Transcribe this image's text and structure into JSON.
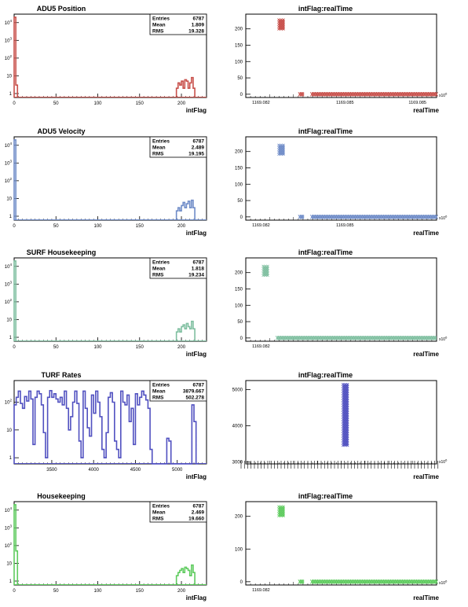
{
  "chart_data": [
    {
      "id": "p1",
      "type": "bar",
      "title": "ADU5 Position",
      "xlabel": "intFlag",
      "ylabel": "",
      "log_y": true,
      "xlim": [
        0,
        230
      ],
      "ylim": [
        0.6,
        30000
      ],
      "xticks": [
        "0",
        "50",
        "100",
        "150",
        "200"
      ],
      "yticks": [
        "1",
        "10",
        "10^2",
        "10^3",
        "10^4"
      ],
      "color": "#c8504b",
      "stats": {
        "entries_label": "Entries",
        "entries": "6787",
        "mean_label": "Mean",
        "mean": "1.809",
        "rms_label": "RMS",
        "rms": "19.328"
      },
      "bins": [
        {
          "x": 0,
          "y": 20000
        },
        {
          "x": 2,
          "y": 3
        },
        {
          "x": 194,
          "y": 2
        },
        {
          "x": 196,
          "y": 4
        },
        {
          "x": 198,
          "y": 3
        },
        {
          "x": 200,
          "y": 5
        },
        {
          "x": 202,
          "y": 2
        },
        {
          "x": 204,
          "y": 6
        },
        {
          "x": 206,
          "y": 5
        },
        {
          "x": 208,
          "y": 2
        },
        {
          "x": 210,
          "y": 4
        },
        {
          "x": 212,
          "y": 8
        },
        {
          "x": 214,
          "y": 2
        }
      ]
    },
    {
      "id": "s1",
      "type": "scatter",
      "title": "intFlag:realTime",
      "xlabel": "realTime",
      "x_unit_label": "x10^6",
      "xlim": [
        1169.0815,
        1169.087
      ],
      "ylim": [
        -10,
        245
      ],
      "xticks": [
        "1169.082",
        "1169.085",
        "1169.085"
      ],
      "yticks": [
        "0",
        "50",
        "100",
        "150",
        "200"
      ],
      "color": "#c8504b",
      "clusters": [
        {
          "x0": 1169.08245,
          "x1": 1169.08262,
          "y0": 198,
          "y1": 228
        },
        {
          "x0": 1169.08305,
          "x1": 1169.08318,
          "y0": 0,
          "y1": 1
        },
        {
          "x0": 1169.0834,
          "x1": 1169.087,
          "y0": 0,
          "y1": 1
        }
      ]
    },
    {
      "id": "p2",
      "type": "bar",
      "title": "ADU5 Velocity",
      "xlabel": "intFlag",
      "ylabel": "",
      "log_y": true,
      "xlim": [
        0,
        230
      ],
      "ylim": [
        0.6,
        30000
      ],
      "xticks": [
        "0",
        "50",
        "100",
        "150",
        "200"
      ],
      "yticks": [
        "1",
        "10",
        "10^2",
        "10^3",
        "10^4"
      ],
      "color": "#6f8cc8",
      "stats": {
        "entries_label": "Entries",
        "entries": "6787",
        "mean_label": "Mean",
        "mean": "2.489",
        "rms_label": "RMS",
        "rms": "19.195"
      },
      "bins": [
        {
          "x": 0,
          "y": 20000
        },
        {
          "x": 194,
          "y": 2
        },
        {
          "x": 196,
          "y": 3
        },
        {
          "x": 198,
          "y": 2
        },
        {
          "x": 200,
          "y": 4
        },
        {
          "x": 202,
          "y": 6
        },
        {
          "x": 204,
          "y": 3
        },
        {
          "x": 206,
          "y": 5
        },
        {
          "x": 208,
          "y": 7
        },
        {
          "x": 210,
          "y": 3
        },
        {
          "x": 212,
          "y": 8
        },
        {
          "x": 214,
          "y": 3
        }
      ]
    },
    {
      "id": "s2",
      "type": "scatter",
      "title": "intFlag:realTime",
      "xlabel": "realTime",
      "x_unit_label": "x10^6",
      "xlim": [
        1169.0815,
        1169.087
      ],
      "ylim": [
        -10,
        245
      ],
      "xticks": [
        "1169.082",
        "1169.085"
      ],
      "yticks": [
        "0",
        "50",
        "100",
        "150",
        "200"
      ],
      "color": "#6f8cc8",
      "clusters": [
        {
          "x0": 1169.08245,
          "x1": 1169.08262,
          "y0": 190,
          "y1": 220
        },
        {
          "x0": 1169.08305,
          "x1": 1169.08318,
          "y0": 0,
          "y1": 1
        },
        {
          "x0": 1169.0834,
          "x1": 1169.087,
          "y0": 0,
          "y1": 1
        }
      ]
    },
    {
      "id": "p3",
      "type": "bar",
      "title": "SURF Housekeeping",
      "xlabel": "intFlag",
      "ylabel": "",
      "log_y": true,
      "xlim": [
        0,
        230
      ],
      "ylim": [
        0.6,
        30000
      ],
      "xticks": [
        "0",
        "50",
        "100",
        "150",
        "200"
      ],
      "yticks": [
        "1",
        "10",
        "10^2",
        "10^3",
        "10^4"
      ],
      "color": "#7fbfa0",
      "stats": {
        "entries_label": "Entries",
        "entries": "6787",
        "mean_label": "Mean",
        "mean": "1.818",
        "rms_label": "RMS",
        "rms": "19.234"
      },
      "bins": [
        {
          "x": 0,
          "y": 20000
        },
        {
          "x": 194,
          "y": 2
        },
        {
          "x": 196,
          "y": 3
        },
        {
          "x": 198,
          "y": 2
        },
        {
          "x": 200,
          "y": 4
        },
        {
          "x": 202,
          "y": 5
        },
        {
          "x": 204,
          "y": 3
        },
        {
          "x": 206,
          "y": 6
        },
        {
          "x": 208,
          "y": 4
        },
        {
          "x": 210,
          "y": 3
        },
        {
          "x": 212,
          "y": 8
        },
        {
          "x": 214,
          "y": 3
        }
      ]
    },
    {
      "id": "s3",
      "type": "scatter",
      "title": "intFlag:realTime",
      "xlabel": "realTime",
      "x_unit_label": "x10^6",
      "xlim": [
        1169.0815,
        1169.087
      ],
      "ylim": [
        -10,
        245
      ],
      "xticks": [
        "1169.082"
      ],
      "yticks": [
        "0",
        "50",
        "100",
        "150",
        "200"
      ],
      "color": "#7fbfa0",
      "clusters": [
        {
          "x0": 1169.082,
          "x1": 1169.08215,
          "y0": 190,
          "y1": 220
        },
        {
          "x0": 1169.0824,
          "x1": 1169.087,
          "y0": 0,
          "y1": 1
        }
      ]
    },
    {
      "id": "p4",
      "type": "bar",
      "title": "TURF Rates",
      "xlabel": "intFlag",
      "ylabel": "",
      "log_y": true,
      "xlim": [
        3050,
        5350
      ],
      "ylim": [
        0.6,
        600
      ],
      "xticks": [
        "3500",
        "4000",
        "4500",
        "5000"
      ],
      "yticks": [
        "1",
        "10",
        "10^2"
      ],
      "color": "#5050c0",
      "stats": {
        "entries_label": "Entries",
        "entries": "6787",
        "mean_label": "Mean",
        "mean": "3879.667",
        "rms_label": "RMS",
        "rms": "502.278"
      },
      "bins": [
        {
          "x": 3050,
          "y": 80
        },
        {
          "x": 3075,
          "y": 150
        },
        {
          "x": 3100,
          "y": 250
        },
        {
          "x": 3125,
          "y": 90
        },
        {
          "x": 3150,
          "y": 60
        },
        {
          "x": 3175,
          "y": 160
        },
        {
          "x": 3200,
          "y": 110
        },
        {
          "x": 3225,
          "y": 250
        },
        {
          "x": 3250,
          "y": 130
        },
        {
          "x": 3275,
          "y": 3
        },
        {
          "x": 3300,
          "y": 150
        },
        {
          "x": 3325,
          "y": 250
        },
        {
          "x": 3350,
          "y": 200
        },
        {
          "x": 3375,
          "y": 80
        },
        {
          "x": 3400,
          "y": 8
        },
        {
          "x": 3425,
          "y": 1
        },
        {
          "x": 3450,
          "y": 150
        },
        {
          "x": 3475,
          "y": 260
        },
        {
          "x": 3500,
          "y": 150
        },
        {
          "x": 3525,
          "y": 200
        },
        {
          "x": 3550,
          "y": 130
        },
        {
          "x": 3575,
          "y": 100
        },
        {
          "x": 3600,
          "y": 150
        },
        {
          "x": 3625,
          "y": 80
        },
        {
          "x": 3650,
          "y": 250
        },
        {
          "x": 3675,
          "y": 60
        },
        {
          "x": 3700,
          "y": 10
        },
        {
          "x": 3725,
          "y": 30
        },
        {
          "x": 3750,
          "y": 100
        },
        {
          "x": 3775,
          "y": 250
        },
        {
          "x": 3800,
          "y": 90
        },
        {
          "x": 3825,
          "y": 4
        },
        {
          "x": 3850,
          "y": 1
        },
        {
          "x": 3875,
          "y": 250
        },
        {
          "x": 3900,
          "y": 60
        },
        {
          "x": 3925,
          "y": 12
        },
        {
          "x": 3950,
          "y": 6
        },
        {
          "x": 3975,
          "y": 180
        },
        {
          "x": 4000,
          "y": 40
        },
        {
          "x": 4025,
          "y": 250
        },
        {
          "x": 4050,
          "y": 100
        },
        {
          "x": 4075,
          "y": 30
        },
        {
          "x": 4100,
          "y": 2
        },
        {
          "x": 4125,
          "y": 1
        },
        {
          "x": 4150,
          "y": 8
        },
        {
          "x": 4175,
          "y": 150
        },
        {
          "x": 4200,
          "y": 220
        },
        {
          "x": 4225,
          "y": 100
        },
        {
          "x": 4250,
          "y": 4
        },
        {
          "x": 4275,
          "y": 2
        },
        {
          "x": 4300,
          "y": 1
        },
        {
          "x": 4325,
          "y": 250
        },
        {
          "x": 4350,
          "y": 100
        },
        {
          "x": 4375,
          "y": 80
        },
        {
          "x": 4400,
          "y": 180
        },
        {
          "x": 4425,
          "y": 20
        },
        {
          "x": 4450,
          "y": 60
        },
        {
          "x": 4475,
          "y": 3
        },
        {
          "x": 4500,
          "y": 200
        },
        {
          "x": 4525,
          "y": 80
        },
        {
          "x": 4550,
          "y": 150
        },
        {
          "x": 4575,
          "y": 250
        },
        {
          "x": 4600,
          "y": 180
        },
        {
          "x": 4625,
          "y": 120
        },
        {
          "x": 4650,
          "y": 60
        },
        {
          "x": 4675,
          "y": 2
        },
        {
          "x": 4700,
          "y": 0.5
        },
        {
          "x": 4725,
          "y": 0.5
        },
        {
          "x": 4750,
          "y": 0.5
        },
        {
          "x": 4775,
          "y": 0.5
        },
        {
          "x": 4800,
          "y": 0.5
        },
        {
          "x": 4825,
          "y": 0.5
        },
        {
          "x": 4850,
          "y": 0.5
        },
        {
          "x": 4875,
          "y": 5
        },
        {
          "x": 4900,
          "y": 4
        },
        {
          "x": 4925,
          "y": 0.5
        },
        {
          "x": 4950,
          "y": 0.5
        },
        {
          "x": 4975,
          "y": 0.5
        },
        {
          "x": 5000,
          "y": 0.5
        },
        {
          "x": 5025,
          "y": 0.5
        },
        {
          "x": 5050,
          "y": 0.5
        },
        {
          "x": 5075,
          "y": 0.5
        },
        {
          "x": 5100,
          "y": 0.5
        },
        {
          "x": 5125,
          "y": 0.5
        },
        {
          "x": 5150,
          "y": 0.5
        },
        {
          "x": 5175,
          "y": 80
        },
        {
          "x": 5200,
          "y": 20
        },
        {
          "x": 5225,
          "y": 0.5
        }
      ]
    },
    {
      "id": "s4",
      "type": "scatter",
      "title": "intFlag:realTime",
      "xlabel": "realTime",
      "x_unit_label": "x10^6",
      "xlim": [
        1169.0815,
        1169.087
      ],
      "ylim": [
        2950,
        5250
      ],
      "xticks": [],
      "yticks": [
        "3000",
        "4000",
        "5000"
      ],
      "color": "#5050c0",
      "clusters": [
        {
          "x0": 1169.0843,
          "x1": 1169.08445,
          "y0": 3450,
          "y1": 5150
        }
      ]
    },
    {
      "id": "p5",
      "type": "bar",
      "title": "Housekeeping",
      "xlabel": "intFlag",
      "ylabel": "",
      "log_y": true,
      "xlim": [
        0,
        230
      ],
      "ylim": [
        0.6,
        30000
      ],
      "xticks": [
        "0",
        "50",
        "100",
        "150",
        "200"
      ],
      "yticks": [
        "1",
        "10",
        "10^2",
        "10^3",
        "10^4"
      ],
      "color": "#5ecb5e",
      "stats": {
        "entries_label": "Entries",
        "entries": "6787",
        "mean_label": "Mean",
        "mean": "2.469",
        "rms_label": "RMS",
        "rms": "19.660"
      },
      "bins": [
        {
          "x": 0,
          "y": 20000
        },
        {
          "x": 2,
          "y": 50
        },
        {
          "x": 194,
          "y": 2
        },
        {
          "x": 196,
          "y": 3
        },
        {
          "x": 198,
          "y": 4
        },
        {
          "x": 200,
          "y": 5
        },
        {
          "x": 202,
          "y": 3
        },
        {
          "x": 204,
          "y": 6
        },
        {
          "x": 206,
          "y": 5
        },
        {
          "x": 208,
          "y": 4
        },
        {
          "x": 210,
          "y": 2
        },
        {
          "x": 212,
          "y": 8
        },
        {
          "x": 214,
          "y": 3
        }
      ]
    },
    {
      "id": "s5",
      "type": "scatter",
      "title": "intFlag:realTime",
      "xlabel": "realTime",
      "x_unit_label": "x10^6",
      "xlim": [
        1169.0815,
        1169.087
      ],
      "ylim": [
        -10,
        245
      ],
      "xticks": [
        "1169.082"
      ],
      "yticks": [
        "0",
        "100",
        "200"
      ],
      "color": "#5ecb5e",
      "clusters": [
        {
          "x0": 1169.08245,
          "x1": 1169.08262,
          "y0": 200,
          "y1": 230
        },
        {
          "x0": 1169.08305,
          "x1": 1169.08318,
          "y0": 0,
          "y1": 1
        },
        {
          "x0": 1169.0834,
          "x1": 1169.087,
          "y0": 0,
          "y1": 1
        }
      ]
    }
  ]
}
